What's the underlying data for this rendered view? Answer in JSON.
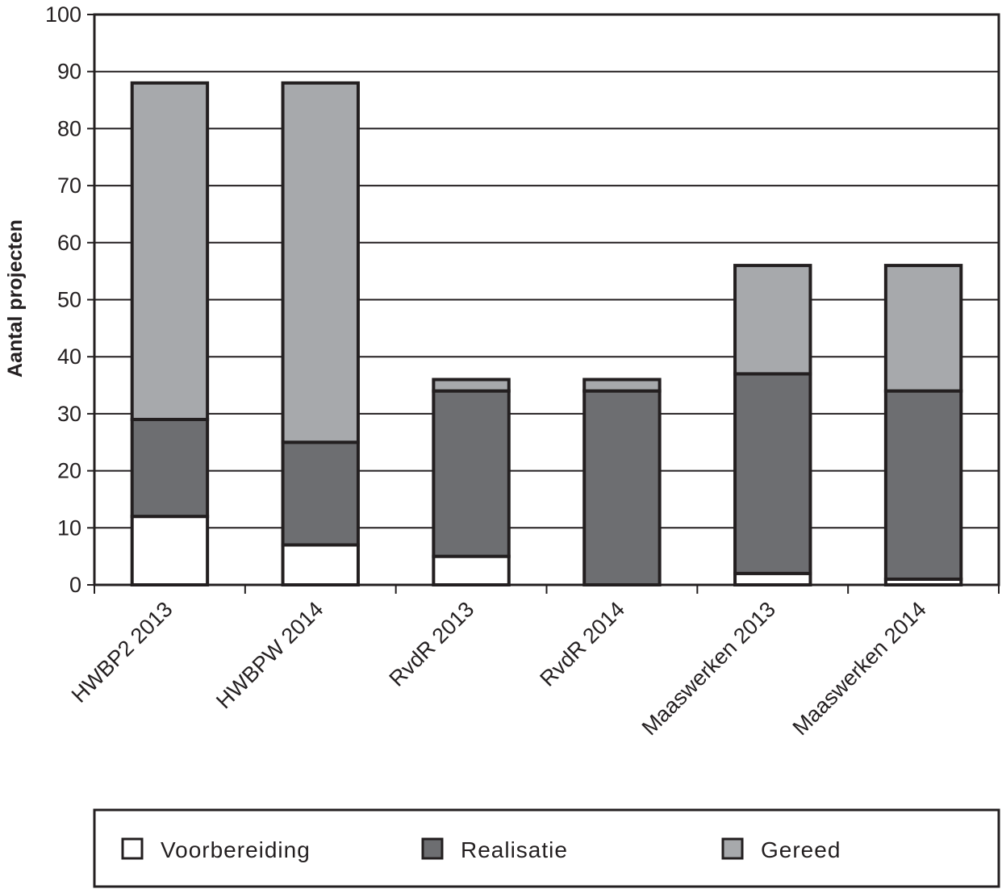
{
  "chart_data": {
    "type": "bar",
    "stacked": true,
    "ylabel": "Aantal projecten",
    "xlabel": "",
    "ylim": [
      0,
      100
    ],
    "yticks": [
      0,
      10,
      20,
      30,
      40,
      50,
      60,
      70,
      80,
      90,
      100
    ],
    "grid": "horizontal",
    "legend_position": "bottom",
    "categories": [
      "HWBP2 2013",
      "HWBPW 2014",
      "RvdR 2013",
      "RvdR 2014",
      "Maaswerken 2013",
      "Maaswerken 2014"
    ],
    "series": [
      {
        "name": "Voorbereiding",
        "color": "#ffffff",
        "values": [
          12,
          7,
          5,
          0,
          2,
          1
        ]
      },
      {
        "name": "Realisatie",
        "color": "#6d6e71",
        "values": [
          17,
          18,
          29,
          34,
          35,
          33
        ]
      },
      {
        "name": "Gereed",
        "color": "#a7a9ac",
        "values": [
          59,
          63,
          2,
          2,
          19,
          22
        ]
      }
    ]
  }
}
